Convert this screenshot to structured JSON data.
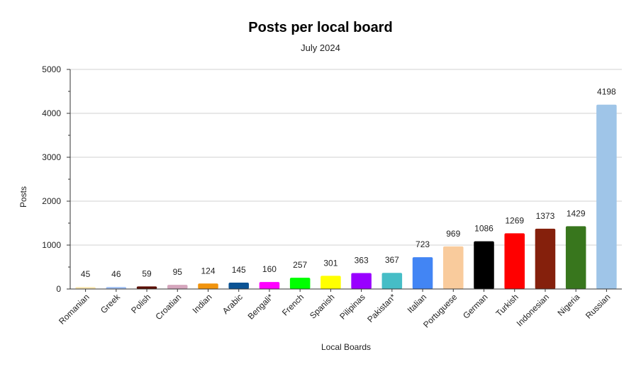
{
  "chart_data": {
    "type": "bar",
    "title": "Posts per local board",
    "subtitle": "July 2024",
    "xlabel": "Local Boards",
    "ylabel": "Posts",
    "ylim": [
      0,
      5000
    ],
    "yticks": [
      0,
      1000,
      2000,
      3000,
      4000,
      5000
    ],
    "grid": true,
    "legend": "none",
    "categories": [
      "Romanian",
      "Greek",
      "Polish",
      "Croatian",
      "Indian",
      "Arabic",
      "Bengali*",
      "French",
      "Spanish",
      "Pilipinas",
      "Pakistan*",
      "Italian",
      "Portuguese",
      "German",
      "Turkish",
      "Indonesian",
      "Nigeria",
      "Russian"
    ],
    "values": [
      45,
      46,
      59,
      95,
      124,
      145,
      160,
      257,
      301,
      363,
      367,
      723,
      969,
      1086,
      1269,
      1373,
      1429,
      4198
    ],
    "colors": [
      "#fce8b2",
      "#a4c2f4",
      "#5b0f00",
      "#d5a6bd",
      "#f1940e",
      "#0b5394",
      "#ff00ff",
      "#00ff00",
      "#ffff00",
      "#9900ff",
      "#46bdc6",
      "#4285f4",
      "#f9cb9c",
      "#000000",
      "#ff0000",
      "#85200c",
      "#38761d",
      "#9fc5e8"
    ]
  }
}
